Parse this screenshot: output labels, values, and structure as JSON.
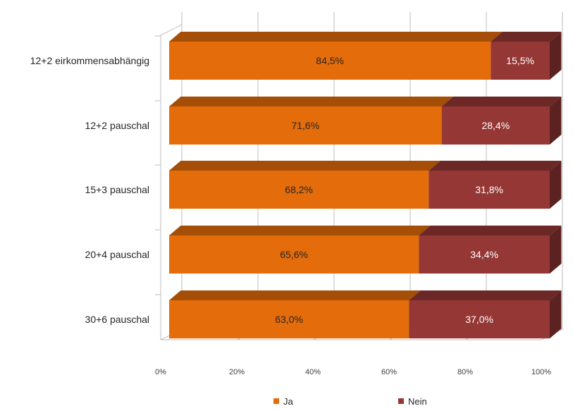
{
  "chart_data": {
    "type": "bar",
    "orientation": "horizontal",
    "stacked": "percent",
    "style": "3d",
    "categories": [
      "12+2 eirkommensabhängig",
      "12+2 pauschal",
      "15+3 pauschal",
      "20+4 pauschal",
      "30+6 pauschal"
    ],
    "series": [
      {
        "name": "Ja",
        "color": "#E46C0A",
        "values": [
          84.5,
          71.6,
          68.2,
          65.6,
          63.0
        ],
        "labels": [
          "84,5%",
          "71,6%",
          "68,2%",
          "65,6%",
          "63,0%"
        ]
      },
      {
        "name": "Nein",
        "color": "#953735",
        "values": [
          15.5,
          28.4,
          31.8,
          34.4,
          37.0
        ],
        "labels": [
          "15,5%",
          "28,4%",
          "31,8%",
          "34,4%",
          "37,0%"
        ]
      }
    ],
    "x_ticks": [
      "0%",
      "20%",
      "40%",
      "60%",
      "80%",
      "100%"
    ],
    "xlim": [
      0,
      100
    ],
    "grid": true,
    "legend": "bottom"
  }
}
